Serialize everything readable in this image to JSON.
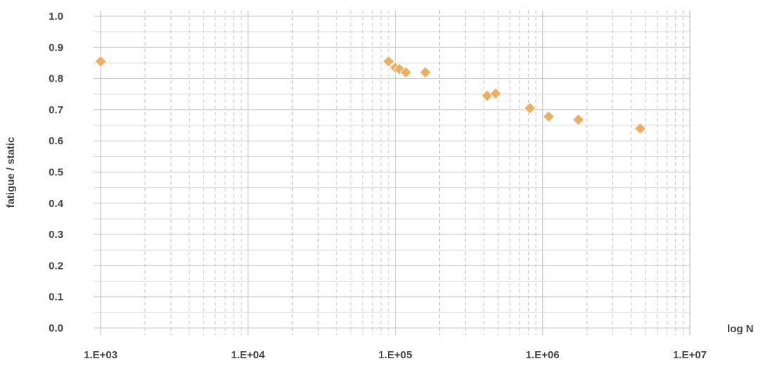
{
  "chart_data": {
    "type": "scatter",
    "title": "",
    "xlabel": "log N",
    "ylabel": "fatigue / static",
    "x_scale": "log",
    "xlim": [
      1000,
      10000000
    ],
    "ylim": [
      0.0,
      1.0
    ],
    "x_tick_labels": [
      "1.E+03",
      "1.E+04",
      "1.E+05",
      "1.E+06",
      "1.E+07"
    ],
    "x_tick_values": [
      1000,
      10000,
      100000,
      1000000,
      10000000
    ],
    "y_tick_labels": [
      "0.0",
      "0.1",
      "0.2",
      "0.3",
      "0.4",
      "0.5",
      "0.6",
      "0.7",
      "0.8",
      "0.9",
      "1.0"
    ],
    "y_tick_values": [
      0.0,
      0.1,
      0.2,
      0.3,
      0.4,
      0.5,
      0.6,
      0.7,
      0.8,
      0.9,
      1.0
    ],
    "grid": {
      "horizontal": true,
      "vertical_major": true,
      "vertical_minor": "dashed"
    },
    "marker": "diamond",
    "marker_color": "#EDAF5F",
    "series": [
      {
        "points": [
          {
            "x": 1000,
            "y": 0.855
          },
          {
            "x": 90000,
            "y": 0.855
          },
          {
            "x": 100000,
            "y": 0.835
          },
          {
            "x": 107000,
            "y": 0.83
          },
          {
            "x": 118000,
            "y": 0.82
          },
          {
            "x": 160000,
            "y": 0.82
          },
          {
            "x": 420000,
            "y": 0.745
          },
          {
            "x": 480000,
            "y": 0.752
          },
          {
            "x": 820000,
            "y": 0.705
          },
          {
            "x": 1100000,
            "y": 0.678
          },
          {
            "x": 1750000,
            "y": 0.668
          },
          {
            "x": 4600000,
            "y": 0.64
          }
        ]
      }
    ]
  }
}
